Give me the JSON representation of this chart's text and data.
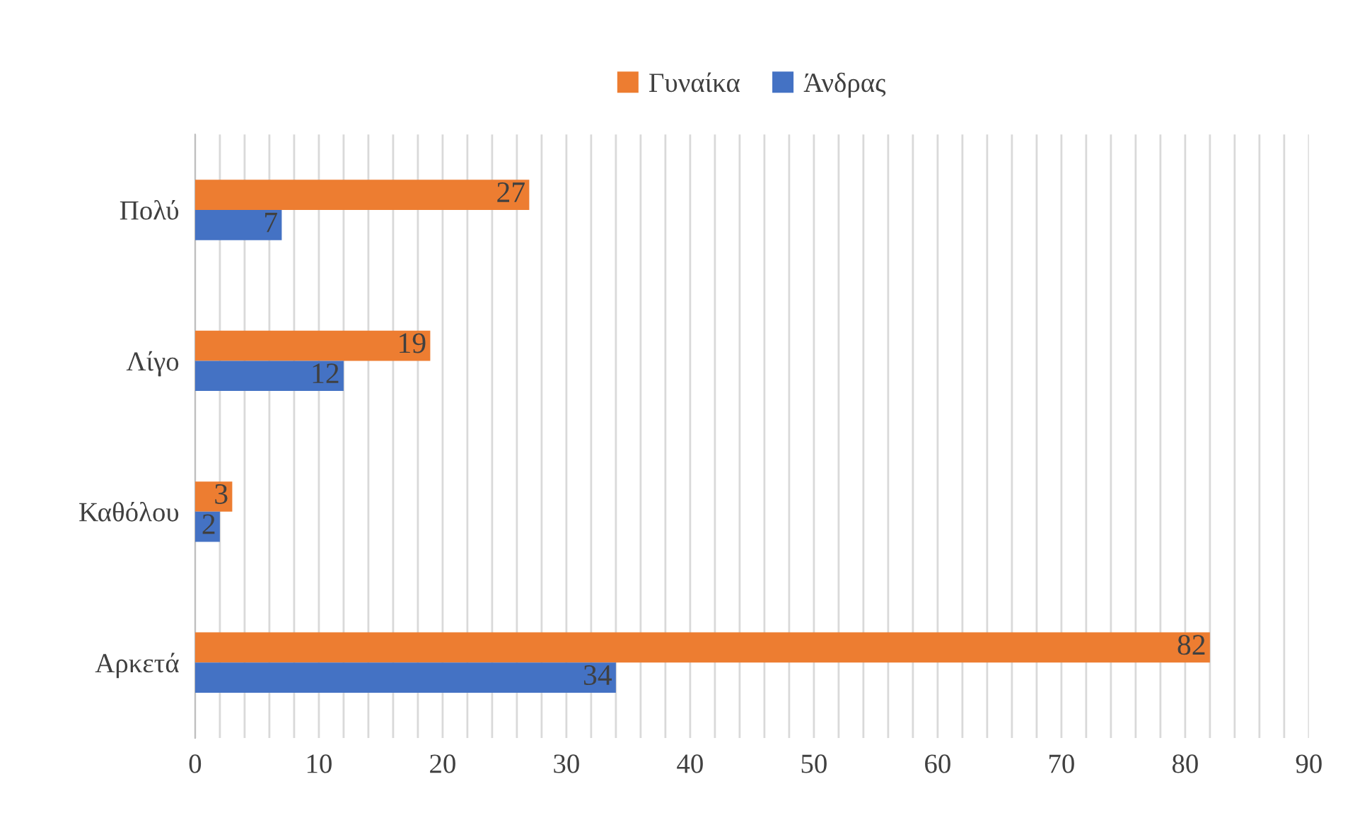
{
  "chart_data": {
    "type": "bar",
    "orientation": "horizontal",
    "categories": [
      "Πολύ",
      "Λίγο",
      "Καθόλου",
      "Αρκετά"
    ],
    "series": [
      {
        "name": "Γυναίκα",
        "color": "#ed7d31",
        "values": [
          27,
          19,
          3,
          82
        ]
      },
      {
        "name": "Άνδρας",
        "color": "#4472c4",
        "values": [
          7,
          12,
          2,
          34
        ]
      }
    ],
    "xlim": [
      0,
      90
    ],
    "xticks": [
      0,
      {
        "value": 2,
        "label": null
      },
      {
        "value": 4,
        "label": null
      },
      {
        "value": 6,
        "label": null
      },
      {
        "value": 8,
        "label": null
      },
      10,
      {
        "value": 12,
        "label": null
      },
      {
        "value": 14,
        "label": null
      },
      {
        "value": 16,
        "label": null
      },
      {
        "value": 18,
        "label": null
      },
      20,
      {
        "value": 22,
        "label": null
      },
      {
        "value": 24,
        "label": null
      },
      {
        "value": 26,
        "label": null
      },
      {
        "value": 28,
        "label": null
      },
      30,
      {
        "value": 32,
        "label": null
      },
      {
        "value": 34,
        "label": null
      },
      {
        "value": 36,
        "label": null
      },
      {
        "value": 38,
        "label": null
      },
      40,
      {
        "value": 42,
        "label": null
      },
      {
        "value": 44,
        "label": null
      },
      {
        "value": 46,
        "label": null
      },
      {
        "value": 48,
        "label": null
      },
      50,
      {
        "value": 52,
        "label": null
      },
      {
        "value": 54,
        "label": null
      },
      {
        "value": 56,
        "label": null
      },
      {
        "value": 58,
        "label": null
      },
      60,
      {
        "value": 62,
        "label": null
      },
      {
        "value": 64,
        "label": null
      },
      {
        "value": 66,
        "label": null
      },
      {
        "value": 68,
        "label": null
      },
      70,
      {
        "value": 72,
        "label": null
      },
      {
        "value": 74,
        "label": null
      },
      {
        "value": 76,
        "label": null
      },
      {
        "value": 78,
        "label": null
      },
      80,
      {
        "value": 82,
        "label": null
      },
      {
        "value": 84,
        "label": null
      },
      {
        "value": 86,
        "label": null
      },
      {
        "value": 88,
        "label": null
      },
      90
    ],
    "grid": "x",
    "legend": "top",
    "data_labels": true
  }
}
